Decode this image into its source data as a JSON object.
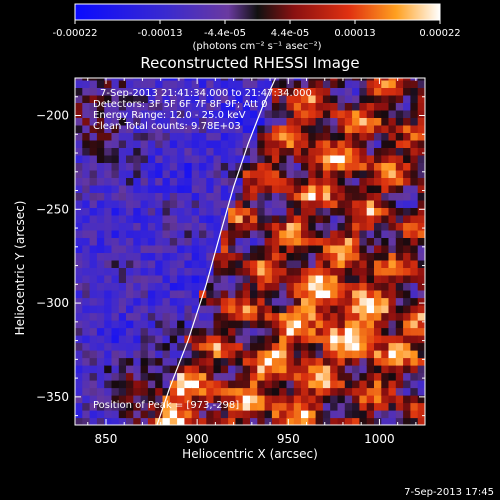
{
  "colorbar": {
    "ticks": [
      "-0.00022",
      "-0.00013",
      "-4.4e-05",
      "4.4e-05",
      "0.00013",
      "0.00022"
    ],
    "units": "(photons cm⁻² s⁻¹ asec⁻²)",
    "range": [
      -0.00022,
      0.00022
    ]
  },
  "chart_data": {
    "type": "heatmap",
    "title": "Reconstructed RHESSI Image",
    "xlabel": "Heliocentric X (arcsec)",
    "ylabel": "Heliocentric Y (arcsec)",
    "xlim": [
      833,
      1025
    ],
    "ylim": [
      -365,
      -180
    ],
    "x_ticks": [
      850,
      900,
      950,
      1000
    ],
    "x_tick_labels": [
      "850",
      "900",
      "950",
      "1000"
    ],
    "y_ticks": [
      -200,
      -250,
      -300,
      -350
    ],
    "y_tick_labels": [
      "−200",
      "−250",
      "−300",
      "−350"
    ],
    "annotations": [
      "7-Sep-2013 21:41:34.000 to 21:47:34.000",
      "Detectors: 3F 5F 6F 7F 8F 9F; Att 0",
      "Energy Range: 12.0 - 25.0 keV",
      "Clean    Total counts: 9.78E+03"
    ],
    "peak_label": "Position of Peak = [973,-298]",
    "limb": {
      "x": [
        878,
        885,
        895,
        905,
        913,
        920,
        928,
        936,
        944
      ],
      "y": [
        -365,
        -345,
        -320,
        -290,
        -262,
        -238,
        -215,
        -195,
        -178
      ]
    },
    "grid": false,
    "legend": "none"
  },
  "footer": {
    "timestamp": "7-Sep-2013 17:45"
  }
}
